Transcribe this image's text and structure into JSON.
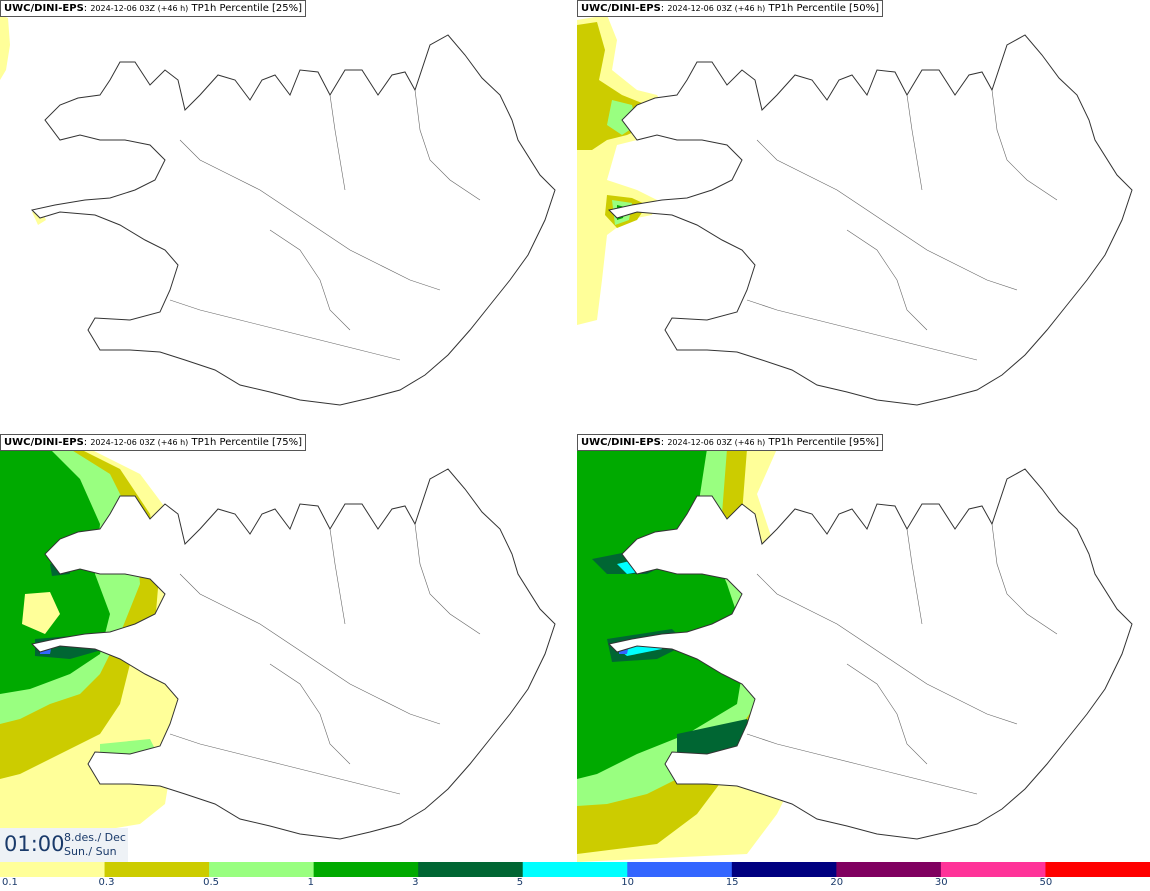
{
  "panels": [
    {
      "model": "UWC/DINI-EPS",
      "run": "2024-12-06 03Z (+46 h)",
      "product": "TP1h Percentile [25%]"
    },
    {
      "model": "UWC/DINI-EPS",
      "run": "2024-12-06 03Z (+46 h)",
      "product": "TP1h Percentile [50%]"
    },
    {
      "model": "UWC/DINI-EPS",
      "run": "2024-12-06 03Z (+46 h)",
      "product": "TP1h Percentile [75%]"
    },
    {
      "model": "UWC/DINI-EPS",
      "run": "2024-12-06 03Z (+46 h)",
      "product": "TP1h Percentile [95%]"
    }
  ],
  "valid_time": {
    "clock": "01:00",
    "date_line1": "8.des./ Dec",
    "date_line2": "Sun./ Sun"
  },
  "colorbar": {
    "colors": [
      "#ffff99",
      "#cccc00",
      "#99ff80",
      "#00aa00",
      "#006633",
      "#00ffff",
      "#3366ff",
      "#000080",
      "#800060",
      "#ff3399",
      "#ff0000"
    ],
    "labels": [
      "0.1",
      "0.3",
      "0.5",
      "1",
      "3",
      "5",
      "10",
      "15",
      "20",
      "30",
      "50"
    ]
  },
  "colors": {
    "yellow_light": "#ffff99",
    "olive": "#cccc00",
    "light_green": "#99ff80",
    "green": "#00aa00",
    "dark_green": "#006633",
    "cyan": "#00ffff",
    "blue": "#3366ff",
    "coast": "#333333"
  }
}
